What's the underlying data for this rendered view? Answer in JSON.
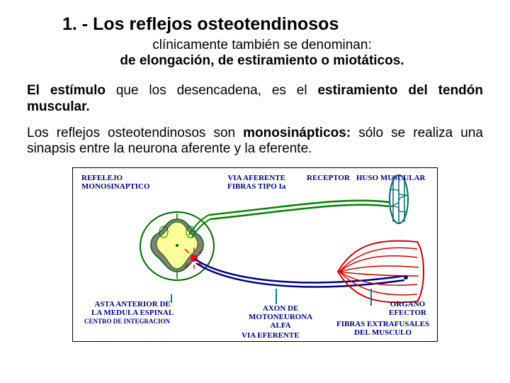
{
  "title": "1. -  Los reflejos osteotendinosos",
  "subtitle1": "clínicamente también se denominan:",
  "subtitle2": "de elongación, de estiramiento o miotáticos.",
  "para1_pre": "El estímulo",
  "para1_mid": " que los desencadena, es el ",
  "para1_post": "estiramiento del tendón muscular.",
  "para2_pre": "Los reflejos osteotendinosos son ",
  "para2_bold": "monosinápticos:",
  "para2_post": " sólo se realiza una sinapsis entre la neurona aferente y la eferente.",
  "diagram": {
    "title_top": "REFELEJO\nMONOSINAPTICO",
    "via_aferente": "VIA AFERENTE\nFIBRAS TIPO Ia",
    "receptor": "RECEPTOR",
    "huso": "HUSO MUSCULAR",
    "asta": "ASTA ANTERIOR DE\nLA MEDULA ESPINAL",
    "centro": "CENTRO DE INTEGRACION",
    "axon": "AXON DE\nMOTONEURONA\nALFA",
    "organo": "ORGANO\nEFECTOR",
    "fibras": "FIBRAS EXTRAFUSALES\nDEL MUSCULO",
    "via_eferente": "VIA EFERENTE",
    "colors": {
      "cord_stroke": "#006600",
      "cord_fill": "#ffff99",
      "cord_gray": "#808080",
      "nerve_green": "#008000",
      "nerve_navy": "#000080",
      "muscle_red": "#cc0000",
      "spindle_teal": "#006666",
      "synapse_red": "#ff0000",
      "text_navy": "#000080"
    }
  }
}
